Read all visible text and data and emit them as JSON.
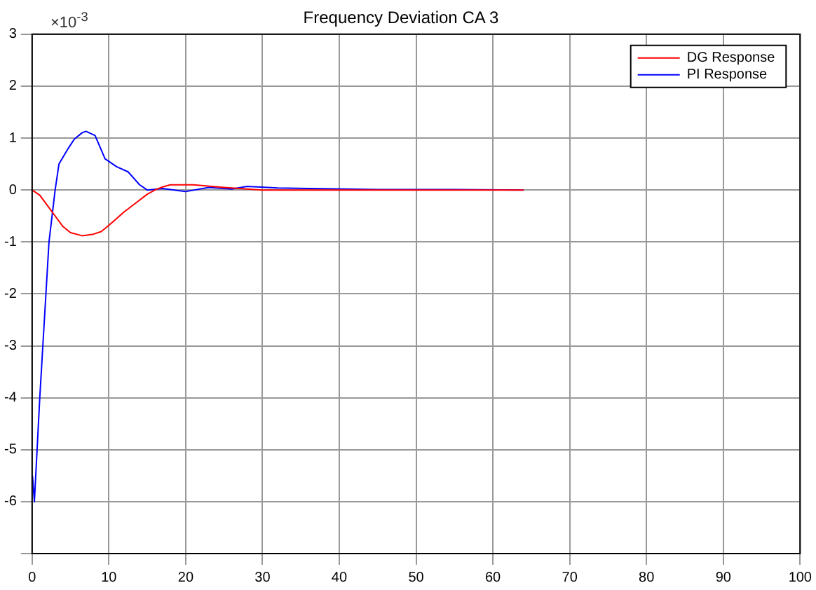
{
  "chart_data": {
    "type": "line",
    "title": "Frequency Deviation CA 3",
    "annotations": [
      "×10$^{-3}$"
    ],
    "xlim": [
      0,
      100
    ],
    "xticks": [
      0,
      10,
      20,
      30,
      40,
      50,
      60,
      70,
      80,
      90,
      100
    ],
    "ylim": [
      -7,
      3
    ],
    "yticks": [
      {
        "value": -7,
        "label": null
      },
      -6,
      -5,
      -4,
      -3,
      -2,
      -1,
      0,
      1,
      2,
      3
    ],
    "grid": true,
    "legend": "top right",
    "marker": "none",
    "line_style": "solid",
    "series": [
      {
        "name": "DG Response",
        "color": "#ff0000",
        "x": [
          0,
          1,
          2,
          3,
          4,
          5,
          6.5,
          8,
          9,
          10,
          11,
          12,
          13.5,
          15,
          16,
          17,
          18,
          21,
          25,
          30,
          40,
          50,
          64
        ],
        "values": [
          0,
          -0.1,
          -0.3,
          -0.5,
          -0.7,
          -0.82,
          -0.88,
          -0.85,
          -0.8,
          -0.68,
          -0.55,
          -0.42,
          -0.25,
          -0.08,
          0,
          0.06,
          0.1,
          0.1,
          0.05,
          0,
          0,
          0,
          0
        ]
      },
      {
        "name": "PI Response",
        "color": "#0000ff",
        "x": [
          0.05,
          0.3,
          1,
          1.4,
          2.2,
          3,
          3.5,
          4.7,
          5.5,
          6.5,
          7,
          8.2,
          9.5,
          11,
          12.5,
          14,
          15,
          17,
          20,
          23,
          26,
          28,
          32,
          36,
          45,
          55,
          64
        ],
        "values": [
          -5.5,
          -6,
          -4,
          -3,
          -1,
          0,
          0.5,
          0.8,
          0.98,
          1.1,
          1.13,
          1.05,
          0.6,
          0.45,
          0.35,
          0.1,
          0,
          0.03,
          -0.03,
          0.05,
          0.02,
          0.07,
          0.04,
          0.03,
          0.01,
          0.01,
          0
        ]
      }
    ]
  }
}
